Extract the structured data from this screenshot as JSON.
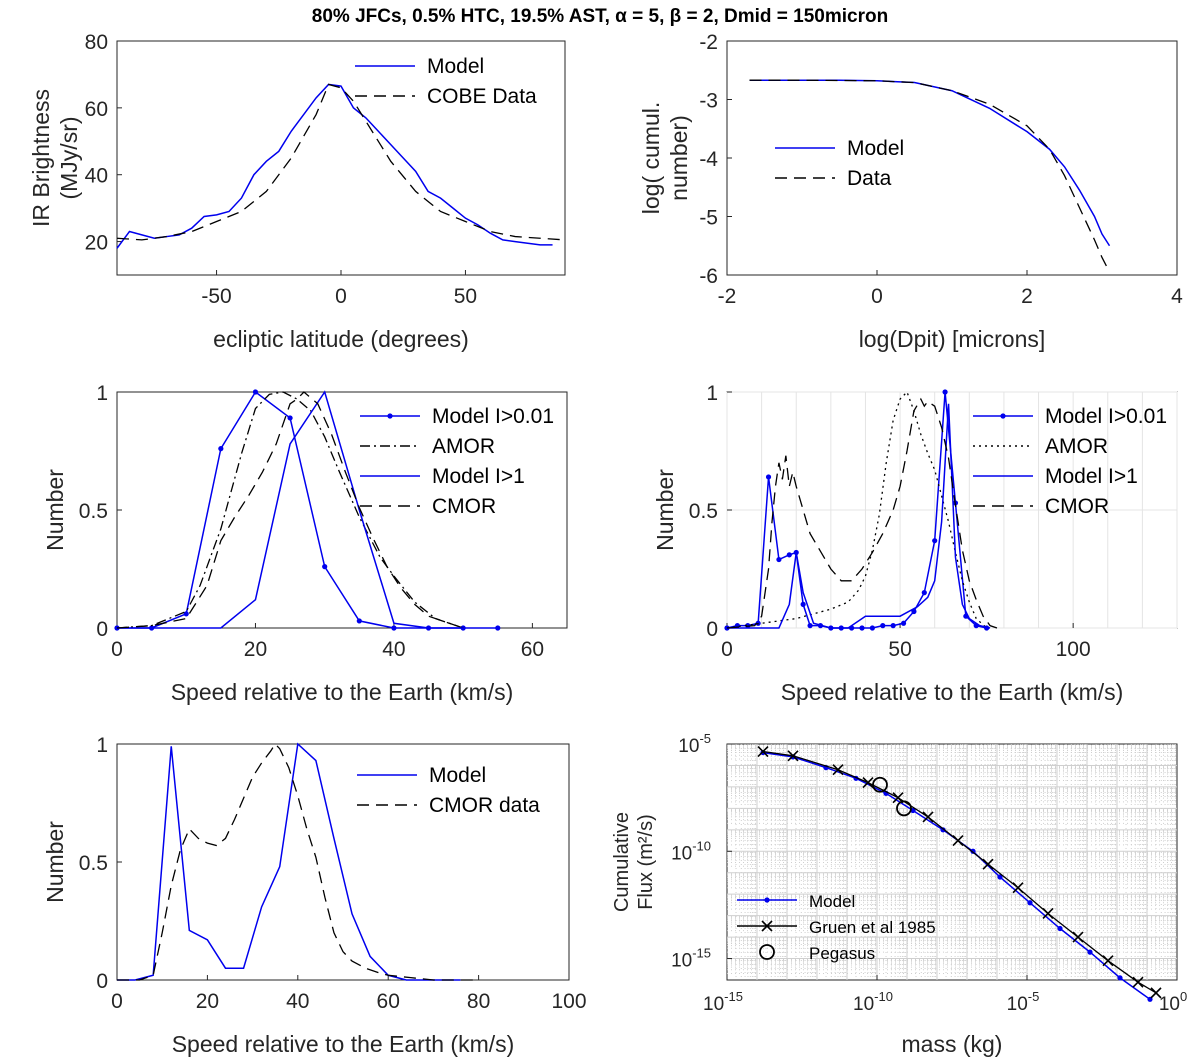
{
  "figure": {
    "title": "80% JFCs, 0.5% HTC, 19.5% AST, α = 5, β = 2, Dmid = 150micron"
  },
  "chart_data": [
    {
      "type": "line",
      "xlabel": "ecliptic latitude (degrees)",
      "ylabel": [
        "IR Brightness",
        "(MJy/sr)"
      ],
      "xlim": [
        -90,
        90
      ],
      "ylim": [
        10,
        80
      ],
      "xticks": [
        -50,
        0,
        50
      ],
      "yticks": [
        20,
        40,
        60,
        80
      ],
      "grid": false,
      "legend_position": "top-right",
      "series": [
        {
          "name": "Model",
          "style": "solid",
          "color": "#0000ee",
          "x": [
            -90,
            -85,
            -80,
            -75,
            -70,
            -65,
            -60,
            -55,
            -50,
            -45,
            -40,
            -35,
            -30,
            -25,
            -20,
            -15,
            -10,
            -5,
            0,
            5,
            10,
            15,
            20,
            25,
            30,
            35,
            40,
            45,
            50,
            55,
            60,
            65,
            70,
            75,
            80,
            85
          ],
          "y": [
            18,
            23,
            22,
            21,
            21.5,
            22,
            24,
            27.5,
            28,
            29,
            33,
            40,
            44,
            47,
            53,
            58,
            63,
            67,
            66.5,
            60,
            57,
            53,
            49,
            45,
            41,
            35,
            33,
            30,
            27,
            25,
            22.5,
            20.5,
            20,
            19.5,
            19,
            19
          ]
        },
        {
          "name": "COBE Data",
          "style": "dashed",
          "color": "#000000",
          "x": [
            -90,
            -80,
            -70,
            -60,
            -50,
            -40,
            -30,
            -20,
            -10,
            -5,
            0,
            5,
            10,
            20,
            30,
            40,
            50,
            60,
            70,
            80,
            90
          ],
          "y": [
            21,
            20.5,
            21.5,
            23,
            26,
            29,
            35,
            45,
            58,
            67,
            66,
            62,
            56,
            44,
            35,
            29,
            26,
            23,
            21.5,
            21,
            20.5
          ]
        }
      ]
    },
    {
      "type": "line",
      "xlabel": "log(Dpit) [microns]",
      "ylabel": [
        "log( cumul.",
        "number)"
      ],
      "xlim": [
        -2,
        4
      ],
      "ylim": [
        -6,
        -2
      ],
      "xticks": [
        -2,
        0,
        2,
        4
      ],
      "yticks": [
        -6,
        -5,
        -4,
        -3,
        -2
      ],
      "grid": false,
      "legend_position": "center-left",
      "series": [
        {
          "name": "Model",
          "style": "solid",
          "color": "#0000ee",
          "x": [
            -1.7,
            -1,
            -0.5,
            0,
            0.5,
            1,
            1.5,
            2,
            2.3,
            2.5,
            2.7,
            2.9,
            3,
            3.1
          ],
          "y": [
            -2.67,
            -2.67,
            -2.67,
            -2.68,
            -2.71,
            -2.85,
            -3.15,
            -3.55,
            -3.85,
            -4.15,
            -4.55,
            -5,
            -5.3,
            -5.5
          ]
        },
        {
          "name": "Data",
          "style": "dashed",
          "color": "#000000",
          "x": [
            -1.7,
            -1,
            0,
            0.5,
            1,
            1.5,
            2,
            2.3,
            2.5,
            2.7,
            2.9,
            3,
            3.1
          ],
          "y": [
            -2.67,
            -2.67,
            -2.68,
            -2.71,
            -2.85,
            -3.08,
            -3.45,
            -3.85,
            -4.3,
            -4.85,
            -5.4,
            -5.7,
            -5.95
          ]
        }
      ]
    },
    {
      "type": "line",
      "xlabel": "Speed relative to the Earth (km/s)",
      "ylabel": [
        "Number"
      ],
      "xlim": [
        0,
        65
      ],
      "ylim": [
        0,
        1
      ],
      "xticks": [
        0,
        20,
        40,
        60
      ],
      "yticks": [
        0,
        0.5,
        1
      ],
      "ytick_labels": [
        "0",
        "0.5",
        "1"
      ],
      "grid": false,
      "legend_position": "top-right",
      "series": [
        {
          "name": "Model I>0.01",
          "style": "solid-dot",
          "color": "#0000ee",
          "x": [
            0,
            5,
            10,
            15,
            20,
            25,
            30,
            35,
            40,
            45,
            50,
            55
          ],
          "y": [
            0,
            0,
            0.06,
            0.76,
            1.0,
            0.89,
            0.26,
            0.03,
            0,
            0,
            0,
            0
          ]
        },
        {
          "name": "AMOR",
          "style": "dashdot",
          "color": "#000000",
          "x": [
            0,
            5,
            10,
            12,
            15,
            18,
            20,
            22,
            24,
            26,
            28,
            30,
            32,
            35,
            38,
            40,
            43,
            46,
            48,
            50
          ],
          "y": [
            0,
            0.01,
            0.07,
            0.18,
            0.42,
            0.74,
            0.93,
            0.99,
            1.0,
            0.97,
            0.92,
            0.81,
            0.67,
            0.47,
            0.3,
            0.22,
            0.11,
            0.04,
            0.02,
            0
          ]
        },
        {
          "name": "Model I>1",
          "style": "solid",
          "color": "#0000ee",
          "x": [
            0,
            10,
            15,
            20,
            25,
            30,
            35,
            40,
            45,
            50
          ],
          "y": [
            0,
            0,
            0,
            0.12,
            0.78,
            1.0,
            0.5,
            0.02,
            0,
            0
          ]
        },
        {
          "name": "CMOR",
          "style": "dashed",
          "color": "#000000",
          "x": [
            0,
            5,
            10,
            13,
            15,
            17,
            19,
            21,
            23,
            25,
            26,
            27,
            29,
            31,
            33,
            35,
            37,
            39,
            41,
            43,
            45,
            48,
            50
          ],
          "y": [
            0,
            0.01,
            0.04,
            0.18,
            0.37,
            0.47,
            0.56,
            0.66,
            0.78,
            0.95,
            0.97,
            1.0,
            0.95,
            0.82,
            0.66,
            0.51,
            0.38,
            0.26,
            0.17,
            0.1,
            0.05,
            0.02,
            0
          ]
        }
      ]
    },
    {
      "type": "line",
      "xlabel": "Speed relative to the Earth (km/s)",
      "ylabel": [
        "Number"
      ],
      "xlim": [
        0,
        130
      ],
      "ylim": [
        0,
        1
      ],
      "xticks": [
        0,
        50,
        100
      ],
      "yticks": [
        0,
        0.5,
        1
      ],
      "ytick_labels": [
        "0",
        "0.5",
        "1"
      ],
      "grid": true,
      "legend_position": "top-right",
      "series": [
        {
          "name": "Model I>0.01",
          "style": "solid-dot",
          "color": "#0000ee",
          "x": [
            0,
            3,
            6,
            9,
            12,
            15,
            18,
            20,
            22,
            24,
            27,
            30,
            33,
            36,
            39,
            42,
            45,
            48,
            51,
            54,
            57,
            60,
            63,
            66,
            69,
            72,
            75
          ],
          "y": [
            0,
            0.01,
            0.01,
            0.02,
            0.64,
            0.29,
            0.31,
            0.32,
            0.1,
            0.01,
            0.01,
            0,
            0,
            0,
            0,
            0,
            0.01,
            0.01,
            0.02,
            0.07,
            0.15,
            0.37,
            1.0,
            0.53,
            0.05,
            0.01,
            0
          ]
        },
        {
          "name": "AMOR",
          "style": "dotted",
          "color": "#000000",
          "x": [
            0,
            10,
            20,
            25,
            30,
            35,
            38,
            40,
            42,
            44,
            46,
            48,
            50,
            52,
            54,
            56,
            58,
            60,
            62,
            64,
            66,
            68,
            70,
            72,
            75
          ],
          "y": [
            0,
            0.02,
            0.04,
            0.06,
            0.08,
            0.11,
            0.16,
            0.22,
            0.33,
            0.48,
            0.7,
            0.88,
            0.97,
            1.0,
            0.92,
            0.82,
            0.74,
            0.67,
            0.56,
            0.45,
            0.32,
            0.2,
            0.11,
            0.04,
            0
          ]
        },
        {
          "name": "Model I>1",
          "style": "solid",
          "color": "#0000ee",
          "x": [
            0,
            5,
            10,
            15,
            18,
            20,
            22,
            25,
            30,
            35,
            40,
            45,
            50,
            55,
            58,
            60,
            62,
            64,
            66,
            68,
            70,
            73,
            76
          ],
          "y": [
            0,
            0,
            0,
            0,
            0.1,
            0.32,
            0.15,
            0.02,
            0,
            0,
            0.05,
            0.05,
            0.05,
            0.09,
            0.13,
            0.2,
            0.45,
            0.95,
            0.3,
            0.1,
            0.04,
            0.01,
            0
          ]
        },
        {
          "name": "CMOR",
          "style": "dashed",
          "color": "#000000",
          "x": [
            0,
            8,
            10,
            12,
            13,
            14,
            15,
            16,
            17,
            18,
            19,
            20,
            21,
            22,
            24,
            26,
            28,
            30,
            33,
            36,
            39,
            42,
            45,
            48,
            50,
            52,
            54,
            56,
            57,
            58,
            60,
            62,
            64,
            66,
            68,
            70,
            72,
            74,
            76,
            78
          ],
          "y": [
            0,
            0.01,
            0.05,
            0.25,
            0.45,
            0.6,
            0.7,
            0.63,
            0.73,
            0.6,
            0.66,
            0.6,
            0.55,
            0.5,
            0.4,
            0.35,
            0.3,
            0.25,
            0.2,
            0.2,
            0.25,
            0.32,
            0.4,
            0.5,
            0.6,
            0.75,
            0.92,
            0.97,
            0.94,
            0.96,
            0.94,
            0.85,
            0.72,
            0.52,
            0.33,
            0.2,
            0.12,
            0.05,
            0.01,
            0
          ]
        }
      ]
    },
    {
      "type": "line",
      "xlabel": "Speed relative to the Earth (km/s)",
      "ylabel": [
        "Number"
      ],
      "xlim": [
        0,
        100
      ],
      "ylim": [
        0,
        1
      ],
      "xticks": [
        0,
        20,
        40,
        60,
        80,
        100
      ],
      "yticks": [
        0,
        0.5,
        1
      ],
      "ytick_labels": [
        "0",
        "0.5",
        "1"
      ],
      "grid": false,
      "legend_position": "top-right",
      "series": [
        {
          "name": "Model",
          "style": "solid",
          "color": "#0000ee",
          "x": [
            0,
            4,
            8,
            12,
            16,
            20,
            24,
            28,
            32,
            36,
            40,
            44,
            48,
            52,
            56,
            60,
            64,
            68,
            72,
            76
          ],
          "y": [
            0,
            0,
            0.02,
            0.99,
            0.21,
            0.17,
            0.05,
            0.05,
            0.31,
            0.48,
            1.0,
            0.93,
            0.6,
            0.28,
            0.1,
            0.02,
            0,
            0,
            0,
            0
          ]
        },
        {
          "name": "CMOR data",
          "style": "dashed",
          "color": "#000000",
          "x": [
            0,
            5,
            8,
            10,
            12,
            14,
            16,
            18,
            20,
            22,
            24,
            26,
            28,
            30,
            32,
            34,
            35,
            36,
            38,
            40,
            42,
            44,
            46,
            48,
            50,
            52,
            55,
            58,
            60,
            65,
            70,
            80
          ],
          "y": [
            0,
            0,
            0.02,
            0.2,
            0.4,
            0.55,
            0.64,
            0.6,
            0.58,
            0.57,
            0.6,
            0.68,
            0.77,
            0.86,
            0.92,
            0.97,
            1.0,
            0.98,
            0.9,
            0.78,
            0.64,
            0.52,
            0.35,
            0.2,
            0.12,
            0.08,
            0.05,
            0.03,
            0.02,
            0.01,
            0,
            0
          ]
        }
      ]
    },
    {
      "type": "line",
      "scale": "log-log",
      "xlabel": "mass (kg)",
      "ylabel": [
        "Cumulative",
        "Flux (m²/s)"
      ],
      "xlim_exp": [
        -15,
        0
      ],
      "ylim_exp": [
        -16,
        -5
      ],
      "xticks_exp": [
        -15,
        -10,
        -5,
        0
      ],
      "yticks_exp": [
        -15,
        -10,
        -5
      ],
      "grid": true,
      "legend_position": "bottom-left",
      "series": [
        {
          "name": "Model",
          "style": "solid-dot",
          "color": "#0000ee",
          "x_exp": [
            -13.8,
            -12.8,
            -11.7,
            -10.7,
            -9.7,
            -8.8,
            -7.8,
            -6.8,
            -5.9,
            -4.9,
            -3.9,
            -2.9,
            -1.9,
            -0.9
          ],
          "y_exp": [
            -5.4,
            -5.6,
            -6.1,
            -6.6,
            -7.3,
            -8.1,
            -9.0,
            -10.0,
            -11.2,
            -12.4,
            -13.6,
            -14.7,
            -15.9,
            -16.9
          ]
        },
        {
          "name": "Gruen et al 1985",
          "style": "solid-x",
          "color": "#000000",
          "x_exp": [
            -13.8,
            -12.8,
            -11.3,
            -10.3,
            -9.3,
            -8.3,
            -7.3,
            -6.3,
            -5.3,
            -4.3,
            -3.3,
            -2.3,
            -1.3,
            -0.7
          ],
          "y_exp": [
            -5.35,
            -5.55,
            -6.2,
            -6.8,
            -7.5,
            -8.4,
            -9.5,
            -10.6,
            -11.7,
            -12.9,
            -14.0,
            -15.1,
            -16.1,
            -16.6
          ]
        },
        {
          "name": "Pegasus",
          "style": "circle",
          "color": "#000000",
          "x_exp": [
            -9.9,
            -9.1
          ],
          "y_exp": [
            -6.9,
            -8.0
          ]
        }
      ]
    }
  ]
}
